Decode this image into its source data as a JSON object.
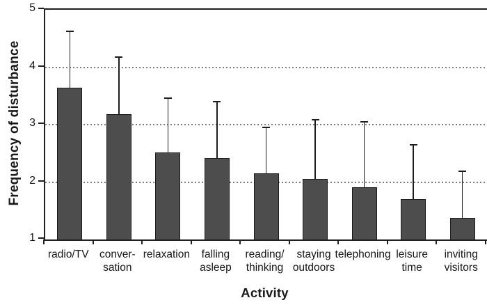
{
  "chart_data": {
    "type": "bar",
    "title": "",
    "xlabel": "Activity",
    "ylabel": "Frequency of disturbance",
    "categories": [
      "radio/TV",
      "conver-sation",
      "relaxation",
      "falling asleep",
      "reading/thinking",
      "staying outdoors",
      "telephoning",
      "leisure time",
      "inviting visitors"
    ],
    "category_lines": [
      [
        "radio/TV"
      ],
      [
        "conver-",
        "sation"
      ],
      [
        "relaxation"
      ],
      [
        "falling",
        "asleep"
      ],
      [
        "reading/",
        "thinking"
      ],
      [
        "staying",
        "outdoors"
      ],
      [
        "telephoning"
      ],
      [
        "leisure",
        "time"
      ],
      [
        "inviting",
        "visitors"
      ]
    ],
    "values": [
      3.64,
      3.18,
      2.52,
      2.42,
      2.15,
      2.06,
      1.91,
      1.7,
      1.37
    ],
    "error_upper": [
      4.62,
      4.17,
      3.46,
      3.4,
      2.95,
      3.08,
      3.05,
      2.65,
      2.19
    ],
    "ylim": [
      1,
      5
    ],
    "yticks": [
      1,
      2,
      3,
      4,
      5
    ],
    "gridlines": [
      2,
      3,
      4
    ],
    "grid_style": "dotted",
    "legend_position": "none",
    "bar_color": "#4d4d4d",
    "bar_border_color": "#1c1c1c",
    "error_color": "#1c1c1c",
    "axis_color": "#1f1f1f",
    "gridline_color": "#7d7d7d",
    "background_color": "#ffffff"
  }
}
